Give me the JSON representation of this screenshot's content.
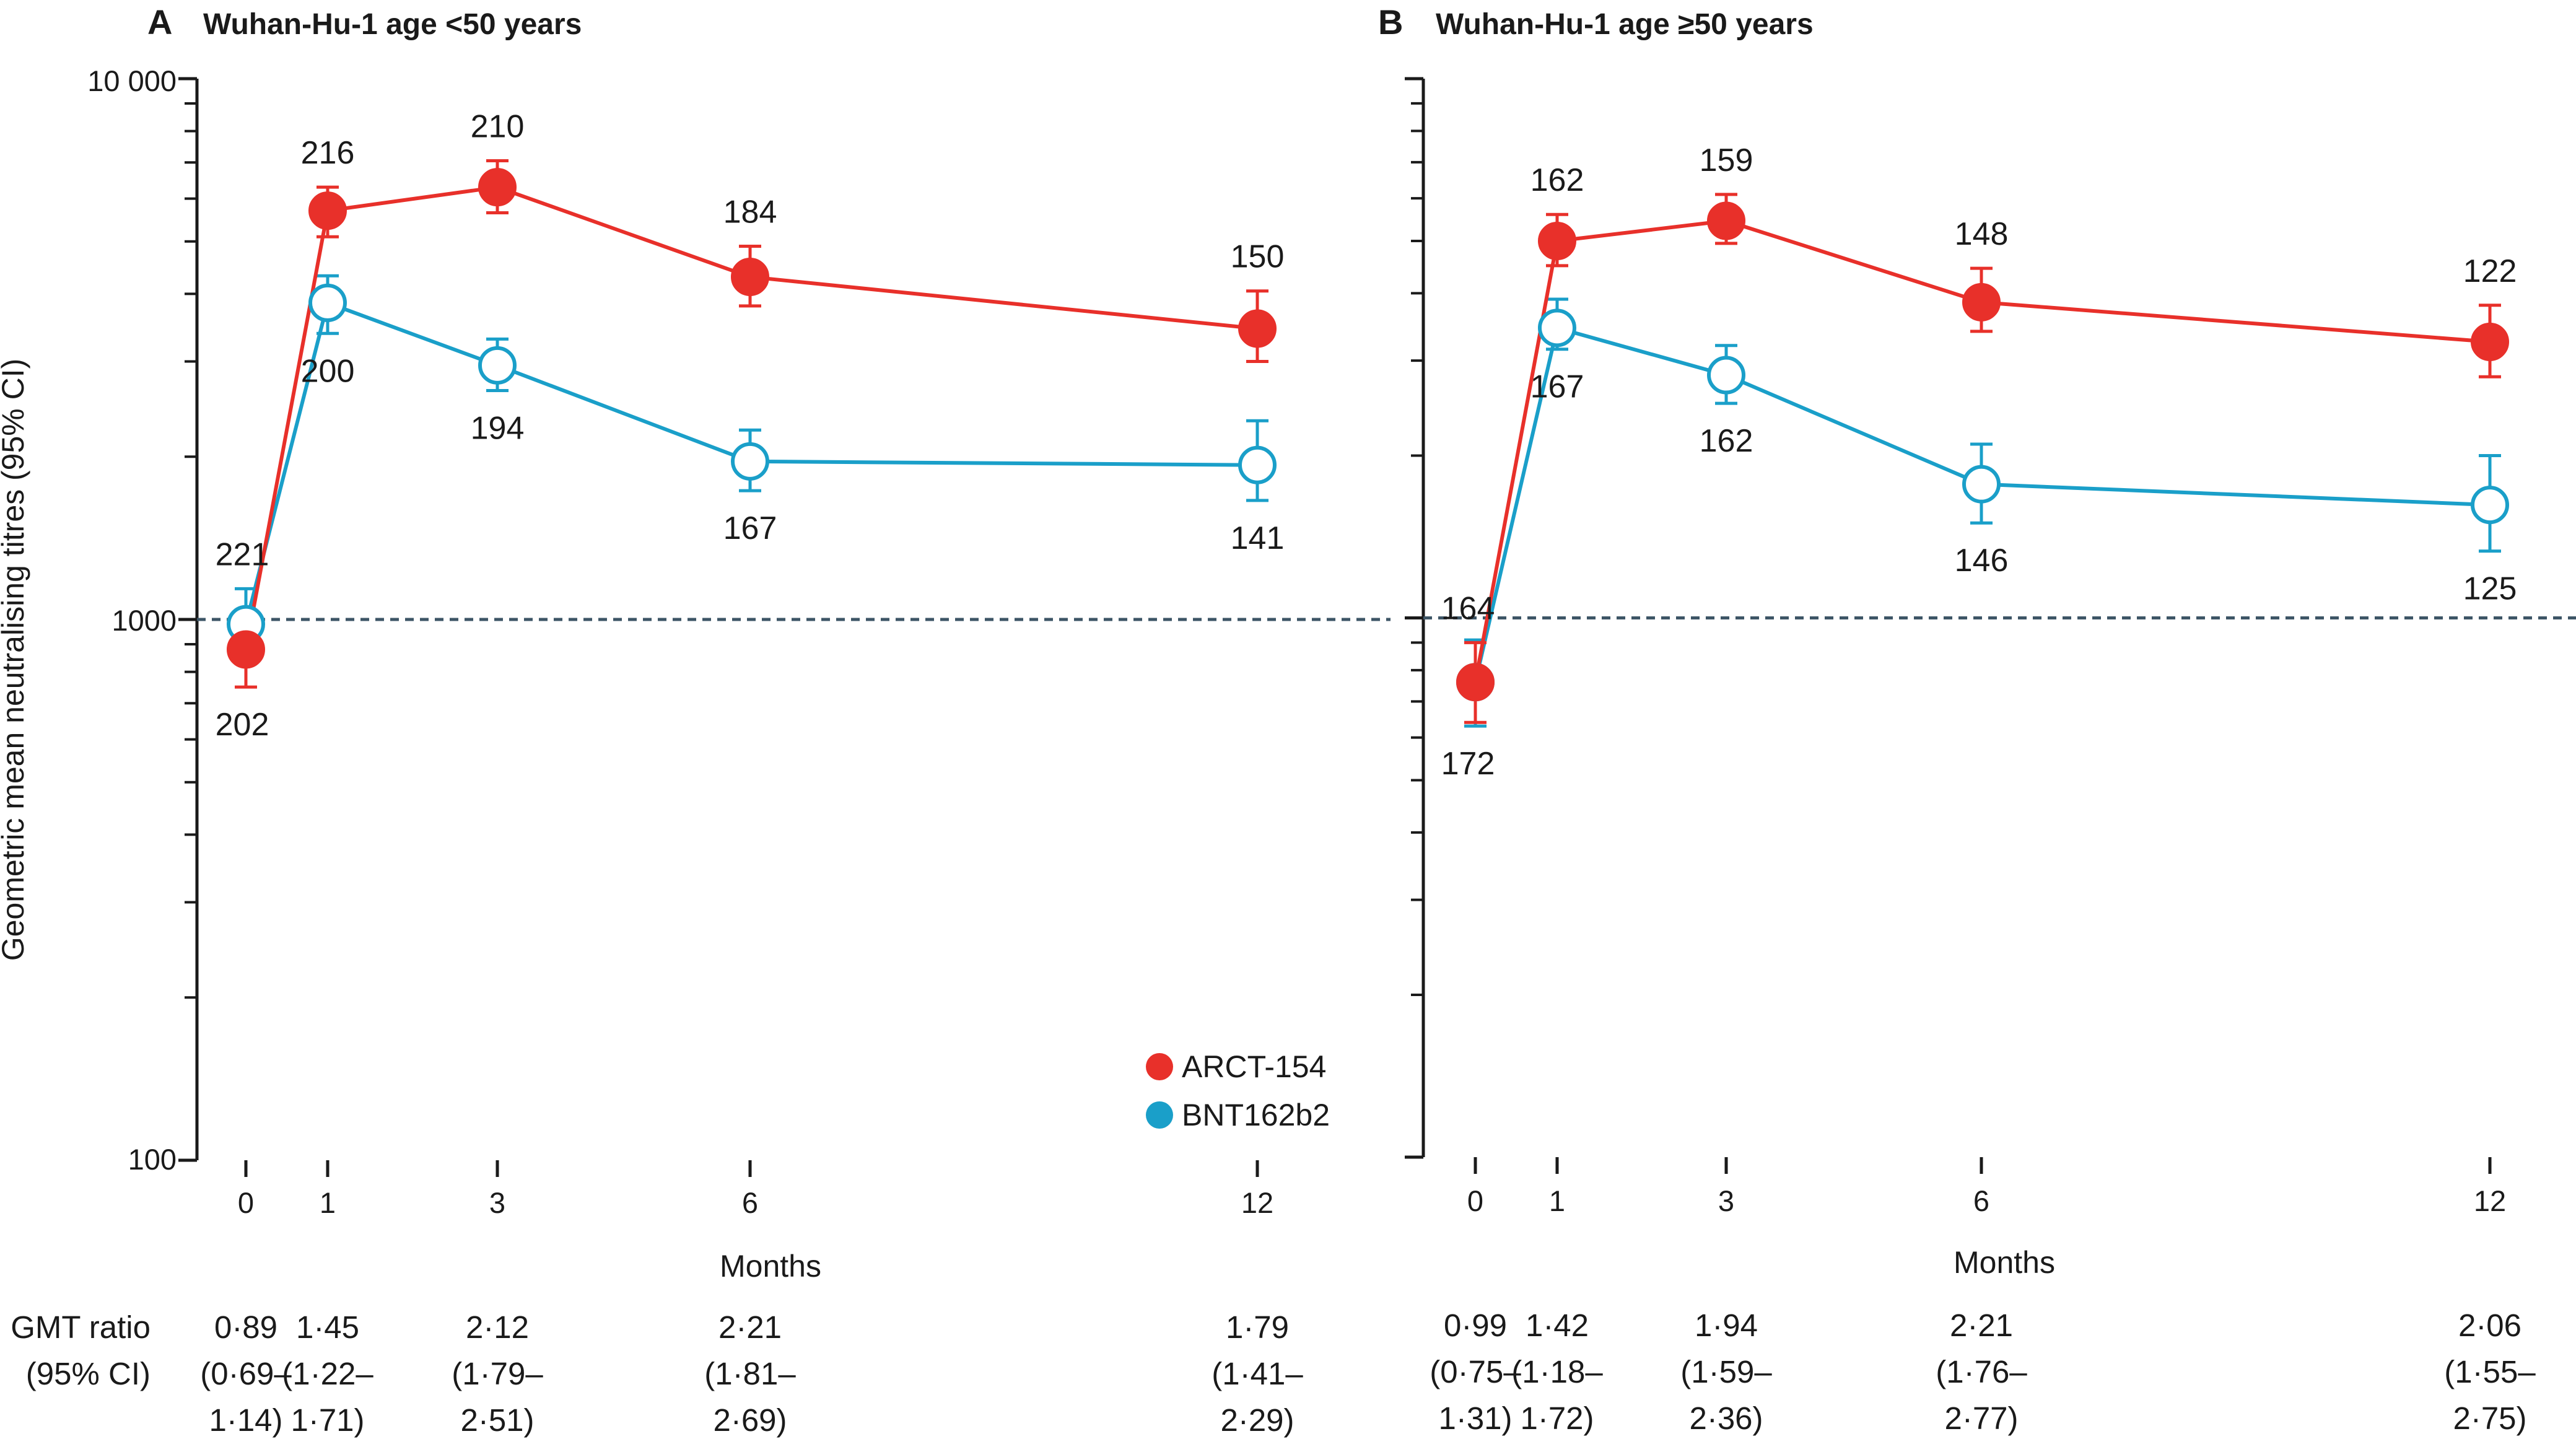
{
  "colors": {
    "arct": "#e8302a",
    "bnt": "#1a9fc9",
    "axis": "#1a1a1a",
    "reference_line": "#3d5566"
  },
  "chart_data": [
    {
      "type": "line",
      "panel": "A",
      "title": "Wuhan-Hu-1 age <50 years",
      "xlabel": "Months",
      "ylabel": "Geometric mean neutralising titres (95% CI)",
      "y_scale": "log",
      "ylim": [
        100,
        10000
      ],
      "y_ticks": [
        100,
        1000,
        10000
      ],
      "y_tick_labels": [
        "100",
        "1000",
        "10 000"
      ],
      "x_ticks": [
        0,
        1,
        3,
        6,
        12
      ],
      "x_tick_labels": [
        "0",
        "1",
        "3",
        "6",
        "12"
      ],
      "reference_line": 1000,
      "legend_position": "bottom-right",
      "series": [
        {
          "name": "ARCT-154",
          "marker": "filled-circle",
          "color": "#e8302a",
          "x": [
            0,
            1,
            3,
            6,
            12
          ],
          "values": [
            880,
            5700,
            6300,
            4300,
            3450
          ],
          "ci_lower": [
            750,
            5100,
            5650,
            3800,
            3000
          ],
          "ci_upper": [
            1000,
            6300,
            7050,
            4900,
            4050
          ],
          "n": [
            "202",
            "216",
            "210",
            "184",
            "150"
          ],
          "n_position": [
            "below",
            "above",
            "above",
            "above",
            "above"
          ]
        },
        {
          "name": "BNT162b2",
          "marker": "open-circle",
          "color": "#1a9fc9",
          "x": [
            0,
            1,
            3,
            6,
            12
          ],
          "values": [
            980,
            3850,
            2950,
            1960,
            1930
          ],
          "ci_lower": [
            850,
            3380,
            2650,
            1730,
            1660
          ],
          "ci_upper": [
            1140,
            4320,
            3300,
            2240,
            2330
          ],
          "n": [
            "221",
            "200",
            "194",
            "167",
            "141"
          ],
          "n_position": [
            "above",
            "below",
            "below",
            "below",
            "below"
          ]
        }
      ],
      "gmt_ratio": {
        "label_line1": "GMT ratio",
        "label_line2": "(95% CI)",
        "values": [
          {
            "value": "0·89",
            "ci_low": "(0·69–",
            "ci_high": "1·14)"
          },
          {
            "value": "1·45",
            "ci_low": "(1·22–",
            "ci_high": "1·71)"
          },
          {
            "value": "2·12",
            "ci_low": "(1·79–",
            "ci_high": "2·51)"
          },
          {
            "value": "2·21",
            "ci_low": "(1·81–",
            "ci_high": "2·69)"
          },
          {
            "value": "1·79",
            "ci_low": "(1·41–",
            "ci_high": "2·29)"
          }
        ]
      }
    },
    {
      "type": "line",
      "panel": "B",
      "title": "Wuhan-Hu-1 age ≥50 years",
      "xlabel": "Months",
      "y_scale": "log",
      "ylim": [
        100,
        10000
      ],
      "x_ticks": [
        0,
        1,
        3,
        6,
        12
      ],
      "x_tick_labels": [
        "0",
        "1",
        "3",
        "6",
        "12"
      ],
      "reference_line": 1000,
      "series": [
        {
          "name": "ARCT-154",
          "marker": "filled-circle",
          "color": "#e8302a",
          "x": [
            0,
            1,
            3,
            6,
            12
          ],
          "values": [
            760,
            5000,
            5450,
            3850,
            3250
          ],
          "ci_lower": [
            640,
            4500,
            4950,
            3400,
            2800
          ],
          "ci_upper": [
            900,
            5600,
            6100,
            4450,
            3800
          ],
          "n": [
            "164",
            "162",
            "159",
            "148",
            "122"
          ],
          "n_position": [
            "above",
            "above",
            "above",
            "above",
            "above"
          ]
        },
        {
          "name": "BNT162b2",
          "marker": "open-circle",
          "color": "#1a9fc9",
          "x": [
            0,
            1,
            3,
            6,
            12
          ],
          "values": [
            760,
            3450,
            2820,
            1770,
            1620
          ],
          "ci_lower": [
            630,
            3150,
            2500,
            1500,
            1330
          ],
          "ci_upper": [
            910,
            3900,
            3200,
            2100,
            2000
          ],
          "n": [
            "172",
            "167",
            "162",
            "146",
            "125"
          ],
          "n_position": [
            "below",
            "below",
            "below",
            "below",
            "below"
          ]
        }
      ],
      "gmt_ratio": {
        "values": [
          {
            "value": "0·99",
            "ci_low": "(0·75–",
            "ci_high": "1·31)"
          },
          {
            "value": "1·42",
            "ci_low": "(1·18–",
            "ci_high": "1·72)"
          },
          {
            "value": "1·94",
            "ci_low": "(1·59–",
            "ci_high": "2·36)"
          },
          {
            "value": "2·21",
            "ci_low": "(1·76–",
            "ci_high": "2·77)"
          },
          {
            "value": "2·06",
            "ci_low": "(1·55–",
            "ci_high": "2·75)"
          }
        ]
      }
    }
  ]
}
